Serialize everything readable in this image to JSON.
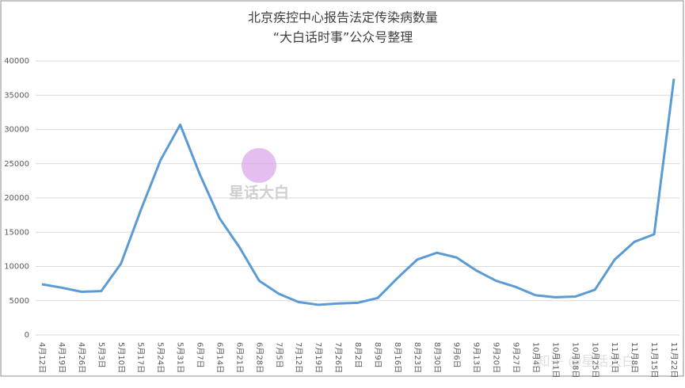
{
  "chart_data": {
    "type": "line",
    "title": "北京疾控中心报告法定传染病数量",
    "subtitle": "“大白话时事”公众号整理",
    "categories": [
      "4月12日",
      "4月19日",
      "4月26日",
      "5月3日",
      "5月10日",
      "5月17日",
      "5月24日",
      "5月31日",
      "6月7日",
      "6月14日",
      "6月21日",
      "6月28日",
      "7月5日",
      "7月12日",
      "7月19日",
      "7月26日",
      "8月2日",
      "8月9日",
      "8月16日",
      "8月23日",
      "8月30日",
      "9月6日",
      "9月13日",
      "9月20日",
      "9月27日",
      "10月4日",
      "10月11日",
      "10月18日",
      "10月25日",
      "11月1日",
      "11月8日",
      "11月15日",
      "11月22日"
    ],
    "series": [
      {
        "name": "法定传染病数量",
        "color": "#5b9bd5",
        "values": [
          7400,
          6900,
          6300,
          6400,
          10400,
          18200,
          25500,
          30700,
          23400,
          17000,
          12800,
          7900,
          6000,
          4800,
          4400,
          4600,
          4700,
          5400,
          8300,
          11000,
          12000,
          11300,
          9400,
          7900,
          7000,
          5800,
          5500,
          5600,
          6600,
          11000,
          13600,
          14700,
          37400
        ]
      }
    ],
    "ylim": [
      0,
      40000
    ],
    "yticks": [
      0,
      5000,
      10000,
      15000,
      20000,
      25000,
      30000,
      35000,
      40000
    ],
    "grid": true,
    "watermarks": [
      "星话大白",
      "知乎 @星话大白"
    ]
  }
}
